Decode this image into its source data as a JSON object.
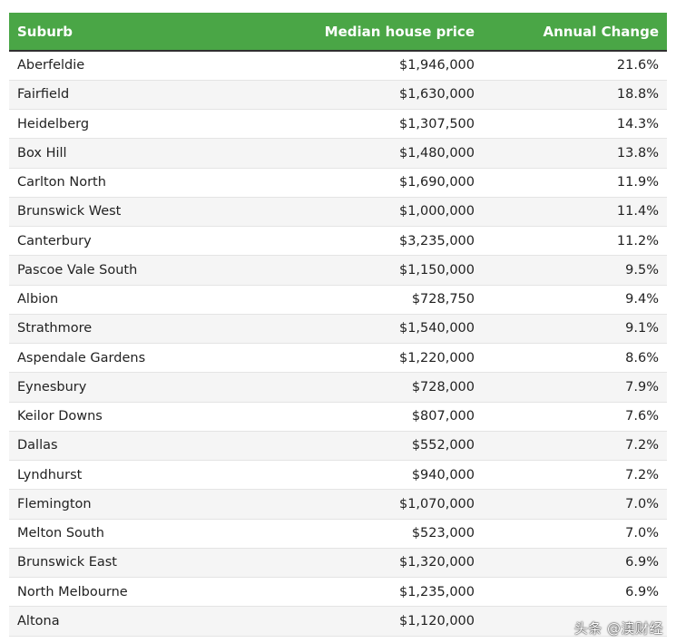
{
  "table": {
    "headers": {
      "suburb": "Suburb",
      "price": "Median house price",
      "change": "Annual Change"
    },
    "rows": [
      {
        "suburb": "Aberfeldie",
        "price": "$1,946,000",
        "change": "21.6%"
      },
      {
        "suburb": "Fairfield",
        "price": "$1,630,000",
        "change": "18.8%"
      },
      {
        "suburb": "Heidelberg",
        "price": "$1,307,500",
        "change": "14.3%"
      },
      {
        "suburb": "Box Hill",
        "price": "$1,480,000",
        "change": "13.8%"
      },
      {
        "suburb": "Carlton North",
        "price": "$1,690,000",
        "change": "11.9%"
      },
      {
        "suburb": "Brunswick West",
        "price": "$1,000,000",
        "change": "11.4%"
      },
      {
        "suburb": "Canterbury",
        "price": "$3,235,000",
        "change": "11.2%"
      },
      {
        "suburb": "Pascoe Vale South",
        "price": "$1,150,000",
        "change": "9.5%"
      },
      {
        "suburb": "Albion",
        "price": "$728,750",
        "change": "9.4%"
      },
      {
        "suburb": "Strathmore",
        "price": "$1,540,000",
        "change": "9.1%"
      },
      {
        "suburb": "Aspendale Gardens",
        "price": "$1,220,000",
        "change": "8.6%"
      },
      {
        "suburb": "Eynesbury",
        "price": "$728,000",
        "change": "7.9%"
      },
      {
        "suburb": "Keilor Downs",
        "price": "$807,000",
        "change": "7.6%"
      },
      {
        "suburb": "Dallas",
        "price": "$552,000",
        "change": "7.2%"
      },
      {
        "suburb": "Lyndhurst",
        "price": "$940,000",
        "change": "7.2%"
      },
      {
        "suburb": "Flemington",
        "price": "$1,070,000",
        "change": "7.0%"
      },
      {
        "suburb": "Melton South",
        "price": "$523,000",
        "change": "7.0%"
      },
      {
        "suburb": "Brunswick East",
        "price": "$1,320,000",
        "change": "6.9%"
      },
      {
        "suburb": "North Melbourne",
        "price": "$1,235,000",
        "change": "6.9%"
      },
      {
        "suburb": "Altona",
        "price": "$1,120,000",
        "change": ""
      }
    ]
  },
  "watermark": "头条 @澳财经",
  "colors": {
    "header_bg": "#4aa646",
    "header_text": "#ffffff",
    "row_alt_bg": "#f5f5f5"
  }
}
